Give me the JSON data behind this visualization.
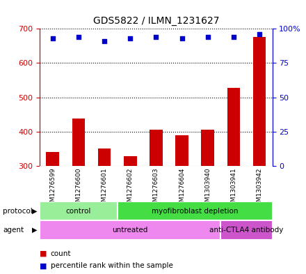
{
  "title": "GDS5822 / ILMN_1231627",
  "samples": [
    "GSM1276599",
    "GSM1276600",
    "GSM1276601",
    "GSM1276602",
    "GSM1276603",
    "GSM1276604",
    "GSM1303940",
    "GSM1303941",
    "GSM1303942"
  ],
  "counts": [
    340,
    437,
    350,
    328,
    406,
    390,
    405,
    528,
    677
  ],
  "percentile_ranks": [
    93,
    94,
    91,
    93,
    94,
    93,
    94,
    94,
    96
  ],
  "ylim_left": [
    300,
    700
  ],
  "ylim_right": [
    0,
    100
  ],
  "yticks_left": [
    300,
    400,
    500,
    600,
    700
  ],
  "yticks_right": [
    0,
    25,
    50,
    75,
    100
  ],
  "ytick_right_labels": [
    "0",
    "25",
    "50",
    "75",
    "100%"
  ],
  "bar_color": "#cc0000",
  "dot_color": "#0000cc",
  "protocol_labels": [
    [
      "control",
      0,
      3
    ],
    [
      "myofibroblast depletion",
      3,
      9
    ]
  ],
  "protocol_colors": [
    "#99ee99",
    "#44dd44"
  ],
  "agent_labels": [
    [
      "untreated",
      0,
      7
    ],
    [
      "anti-CTLA4 antibody",
      7,
      9
    ]
  ],
  "agent_colors": [
    "#ee88ee",
    "#cc55cc"
  ],
  "legend_count_color": "#cc0000",
  "legend_dot_color": "#0000cc",
  "grid_color": "black",
  "axis_left_color": "#cc0000",
  "axis_right_color": "#0000cc",
  "background_color": "#d8d8d8"
}
